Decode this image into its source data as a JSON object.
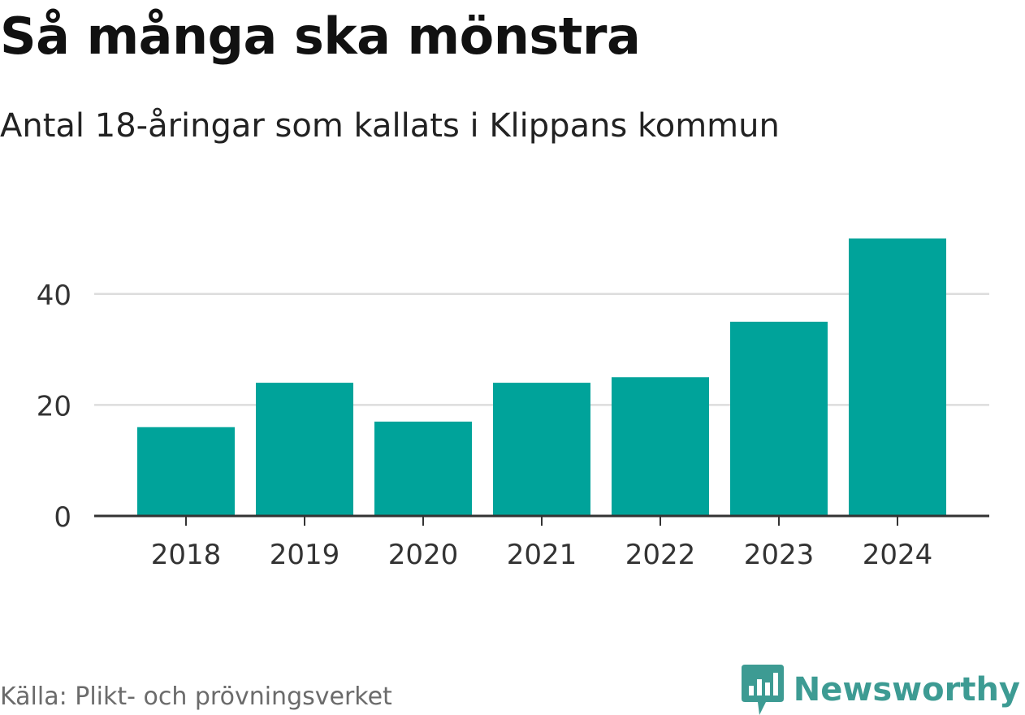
{
  "title": "Så många ska mönstra",
  "subtitle": "Antal 18-åringar som kallats i Klippans kommun",
  "source": "Källa: Plikt- och prövningsverket",
  "brand": {
    "name": "Newsworthy",
    "icon": "newsworthy-logo-icon",
    "color": "#3d9b93"
  },
  "colors": {
    "bar": "#00a39a",
    "grid": "#dddddd",
    "axis": "#333333",
    "tick_text": "#333333"
  },
  "chart_data": {
    "type": "bar",
    "title": "Så många ska mönstra",
    "subtitle": "Antal 18-åringar som kallats i Klippans kommun",
    "xlabel": "",
    "ylabel": "",
    "categories": [
      "2018",
      "2019",
      "2020",
      "2021",
      "2022",
      "2023",
      "2024"
    ],
    "values": [
      16,
      24,
      17,
      24,
      25,
      35,
      50
    ],
    "ylim": [
      0,
      50
    ],
    "yticks": [
      0,
      20,
      40
    ],
    "grid": true,
    "legend": "none"
  }
}
